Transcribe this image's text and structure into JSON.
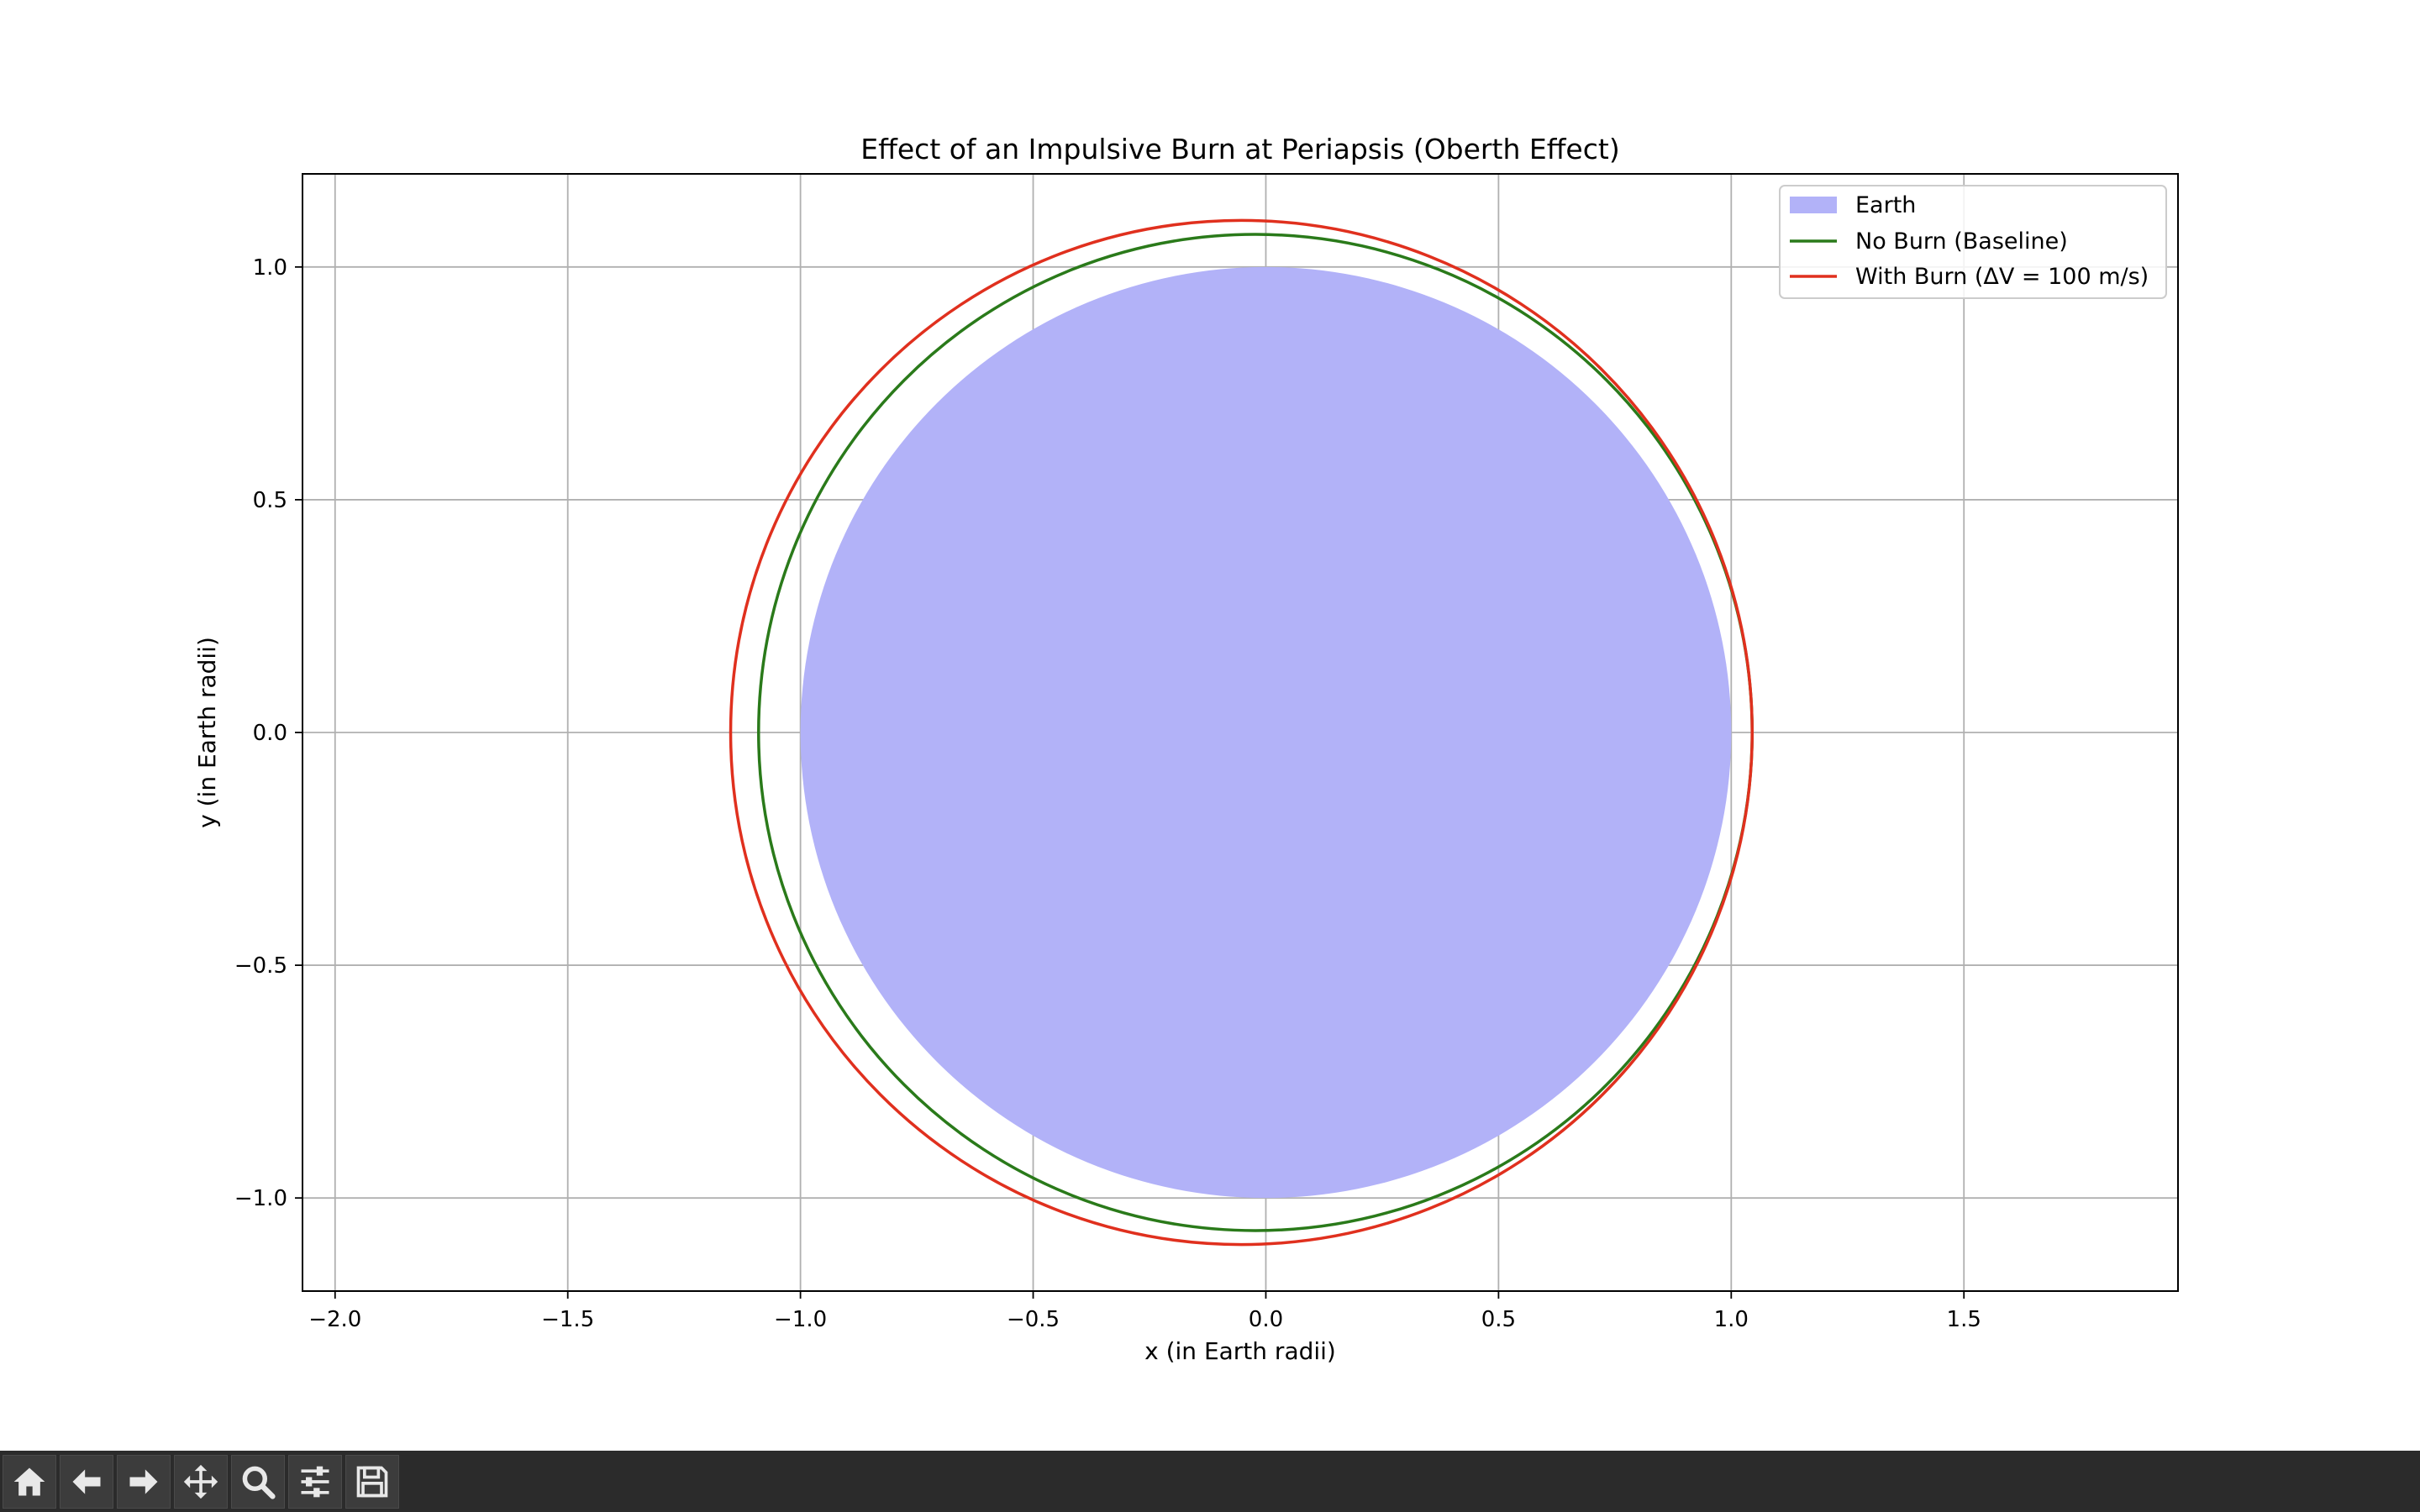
{
  "chart_data": {
    "type": "line",
    "title": "Effect of an Impulsive Burn at Periapsis (Oberth Effect)",
    "xlabel": "x (in Earth radii)",
    "ylabel": "y (in Earth radii)",
    "xlim": [
      -2.07,
      1.96
    ],
    "ylim": [
      -1.2,
      1.2
    ],
    "xticks": [
      -2.0,
      -1.5,
      -1.0,
      -0.5,
      0.0,
      0.5,
      1.0,
      1.5
    ],
    "xtick_labels": [
      "−2.0",
      "−1.5",
      "−1.0",
      "−0.5",
      "0.0",
      "0.5",
      "1.0",
      "1.5"
    ],
    "yticks": [
      -1.0,
      -0.5,
      0.0,
      0.5,
      1.0
    ],
    "ytick_labels": [
      "−1.0",
      "−0.5",
      "0.0",
      "0.5",
      "1.0"
    ],
    "grid": true,
    "legend_position": "top-right",
    "earth": {
      "name": "Earth",
      "center": [
        0,
        0
      ],
      "radius": 1.0,
      "color": "#b2b2f8"
    },
    "series": [
      {
        "name": "No Burn (Baseline)",
        "color": "#2a7a1a",
        "periapsis": 1.045,
        "apoapsis": 1.09,
        "semi_minor": 1.07
      },
      {
        "name": "With Burn (ΔV = 100 m/s)",
        "color": "#e0301e",
        "periapsis": 1.045,
        "apoapsis": 1.15,
        "semi_minor": 1.1
      }
    ]
  },
  "toolbar": {
    "buttons": [
      {
        "name": "home-button",
        "icon": "home-icon"
      },
      {
        "name": "back-button",
        "icon": "arrow-left-icon"
      },
      {
        "name": "forward-button",
        "icon": "arrow-right-icon"
      },
      {
        "name": "pan-button",
        "icon": "move-icon"
      },
      {
        "name": "zoom-button",
        "icon": "magnifier-icon"
      },
      {
        "name": "configure-subplots-button",
        "icon": "sliders-icon"
      },
      {
        "name": "save-button",
        "icon": "floppy-icon"
      }
    ]
  }
}
